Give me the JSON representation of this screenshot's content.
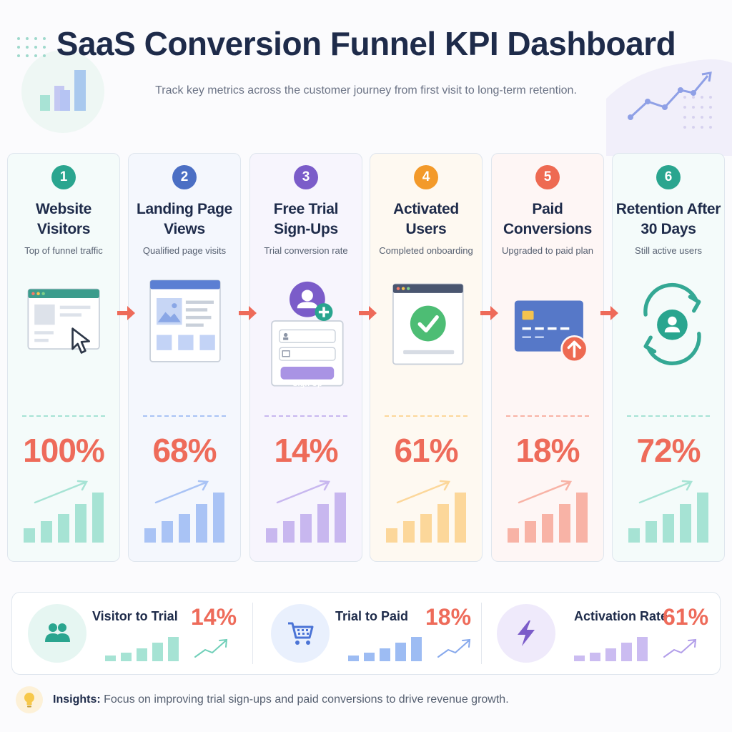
{
  "header": {
    "title": "SaaS Conversion Funnel KPI Dashboard",
    "subtitle": "Track key metrics across the customer journey from first visit to long-term retention."
  },
  "stages": [
    {
      "step": "1",
      "title_line1": "Website",
      "title_line2": "Visitors",
      "description": "Top of funnel traffic",
      "value": "100%",
      "color": "#2aa58f",
      "bar_color": "#a6e3d4",
      "card_bg": "#f4fbfa",
      "icon": "browser-cursor-icon"
    },
    {
      "step": "2",
      "title_line1": "Landing Page",
      "title_line2": "Views",
      "description": "Qualified page visits",
      "value": "68%",
      "color": "#4b6fc4",
      "bar_color": "#a9c3f5",
      "card_bg": "#f4f7fd",
      "icon": "landing-page-icon"
    },
    {
      "step": "3",
      "title_line1": "Free Trial",
      "title_line2": "Sign-Ups",
      "description": "Trial conversion rate",
      "value": "14%",
      "color": "#7b5cc9",
      "bar_color": "#c8b7ef",
      "card_bg": "#f7f5fd",
      "icon": "signup-form-icon",
      "form_button": "Sign Up"
    },
    {
      "step": "4",
      "title_line1": "Activated",
      "title_line2": "Users",
      "description": "Completed onboarding",
      "value": "61%",
      "color": "#f39a2a",
      "bar_color": "#fcd79a",
      "card_bg": "#fef9f1",
      "icon": "checkmark-window-icon"
    },
    {
      "step": "5",
      "title_line1": "Paid",
      "title_line2": "Conversions",
      "description": "Upgraded to paid plan",
      "value": "18%",
      "color": "#ee6a52",
      "bar_color": "#f8b3a6",
      "card_bg": "#fef6f5",
      "icon": "credit-card-icon"
    },
    {
      "step": "6",
      "title_line1": "Retention After",
      "title_line2": "30 Days",
      "description": "Still active users",
      "value": "72%",
      "color": "#2aa58f",
      "bar_color": "#a6e3d4",
      "card_bg": "#f4fbfa",
      "icon": "retention-cycle-icon"
    }
  ],
  "summary": [
    {
      "label": "Visitor to Trial",
      "value": "14%",
      "icon": "users-icon",
      "icon_bg": "#e6f6f2",
      "icon_color": "#2aa58f",
      "bar_color": "#a6e3d4",
      "line_color": "#6fcfb8"
    },
    {
      "label": "Trial to Paid",
      "value": "18%",
      "icon": "shopping-cart-icon",
      "icon_bg": "#e9f0fd",
      "icon_color": "#4b74d6",
      "bar_color": "#9dbcf3",
      "line_color": "#86a8ec"
    },
    {
      "label": "Activation Rate",
      "value": "61%",
      "icon": "lightning-icon",
      "icon_bg": "#efeafb",
      "icon_color": "#7b5cc9",
      "bar_color": "#cbbcf1",
      "line_color": "#b19de9"
    }
  ],
  "insight": {
    "label": "Insights:",
    "text": "Focus on improving trial sign-ups and paid conversions to drive revenue growth.",
    "icon": "lightbulb-icon"
  },
  "colors": {
    "arrow": "#ee6b5a",
    "value": "#ee6b5a",
    "title": "#1e2b4a"
  }
}
